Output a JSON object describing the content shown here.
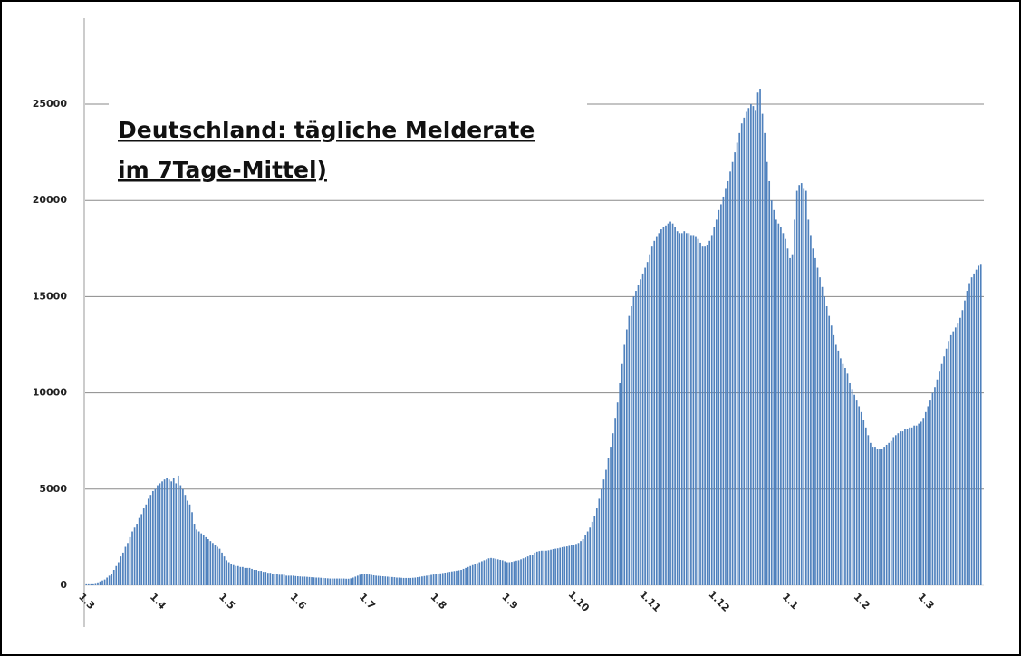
{
  "chart_data": {
    "type": "bar",
    "title": [
      "Deutschland: tägliche Melderate",
      "im 7Tage-Mittel)"
    ],
    "color": "#4f81bd",
    "grid": true,
    "ylim": [
      0,
      29500
    ],
    "yticks": [
      0,
      5000,
      10000,
      15000,
      20000,
      25000
    ],
    "categories": [
      "1.3",
      null,
      null,
      null,
      null,
      null,
      null,
      null,
      null,
      null,
      null,
      null,
      null,
      null,
      null,
      null,
      null,
      null,
      null,
      null,
      null,
      null,
      null,
      null,
      null,
      null,
      null,
      null,
      null,
      null,
      null,
      "1.4",
      null,
      null,
      null,
      null,
      null,
      null,
      null,
      null,
      null,
      null,
      null,
      null,
      null,
      null,
      null,
      null,
      null,
      null,
      null,
      null,
      null,
      null,
      null,
      null,
      null,
      null,
      null,
      null,
      null,
      "1.5",
      null,
      null,
      null,
      null,
      null,
      null,
      null,
      null,
      null,
      null,
      null,
      null,
      null,
      null,
      null,
      null,
      null,
      null,
      null,
      null,
      null,
      null,
      null,
      null,
      null,
      null,
      null,
      null,
      null,
      null,
      "1.6",
      null,
      null,
      null,
      null,
      null,
      null,
      null,
      null,
      null,
      null,
      null,
      null,
      null,
      null,
      null,
      null,
      null,
      null,
      null,
      null,
      null,
      null,
      null,
      null,
      null,
      null,
      null,
      null,
      null,
      "1.7",
      null,
      null,
      null,
      null,
      null,
      null,
      null,
      null,
      null,
      null,
      null,
      null,
      null,
      null,
      null,
      null,
      null,
      null,
      null,
      null,
      null,
      null,
      null,
      null,
      null,
      null,
      null,
      null,
      null,
      null,
      "1.8",
      null,
      null,
      null,
      null,
      null,
      null,
      null,
      null,
      null,
      null,
      null,
      null,
      null,
      null,
      null,
      null,
      null,
      null,
      null,
      null,
      null,
      null,
      null,
      null,
      null,
      null,
      null,
      null,
      null,
      null,
      "1.9",
      null,
      null,
      null,
      null,
      null,
      null,
      null,
      null,
      null,
      null,
      null,
      null,
      null,
      null,
      null,
      null,
      null,
      null,
      null,
      null,
      null,
      null,
      null,
      null,
      null,
      null,
      null,
      null,
      null,
      "1.10",
      null,
      null,
      null,
      null,
      null,
      null,
      null,
      null,
      null,
      null,
      null,
      null,
      null,
      null,
      null,
      null,
      null,
      null,
      null,
      null,
      null,
      null,
      null,
      null,
      null,
      null,
      null,
      null,
      null,
      null,
      "1.11",
      null,
      null,
      null,
      null,
      null,
      null,
      null,
      null,
      null,
      null,
      null,
      null,
      null,
      null,
      null,
      null,
      null,
      null,
      null,
      null,
      null,
      null,
      null,
      null,
      null,
      null,
      null,
      null,
      null,
      "1.12",
      null,
      null,
      null,
      null,
      null,
      null,
      null,
      null,
      null,
      null,
      null,
      null,
      null,
      null,
      null,
      null,
      null,
      null,
      null,
      null,
      null,
      null,
      null,
      null,
      null,
      null,
      null,
      null,
      null,
      null,
      "1.1",
      null,
      null,
      null,
      null,
      null,
      null,
      null,
      null,
      null,
      null,
      null,
      null,
      null,
      null,
      null,
      null,
      null,
      null,
      null,
      null,
      null,
      null,
      null,
      null,
      null,
      null,
      null,
      null,
      null,
      null,
      "1.2",
      null,
      null,
      null,
      null,
      null,
      null,
      null,
      null,
      null,
      null,
      null,
      null,
      null,
      null,
      null,
      null,
      null,
      null,
      null,
      null,
      null,
      null,
      null,
      null,
      null,
      null,
      null,
      "1.3",
      null,
      null,
      null,
      null,
      null,
      null,
      null,
      null,
      null,
      null,
      null,
      null,
      null,
      null,
      null,
      null,
      null,
      null,
      null,
      null,
      null,
      null,
      null,
      null
    ],
    "values": [
      100,
      100,
      100,
      100,
      120,
      150,
      200,
      250,
      300,
      400,
      500,
      600,
      800,
      1000,
      1200,
      1500,
      1700,
      2000,
      2200,
      2500,
      2800,
      3000,
      3200,
      3500,
      3700,
      4000,
      4200,
      4500,
      4700,
      4900,
      5000,
      5200,
      5300,
      5400,
      5500,
      5600,
      5500,
      5400,
      5600,
      5300,
      5700,
      5200,
      5000,
      4700,
      4400,
      4200,
      3800,
      3200,
      2900,
      2800,
      2700,
      2600,
      2500,
      2400,
      2300,
      2200,
      2100,
      2000,
      1900,
      1700,
      1500,
      1300,
      1200,
      1100,
      1050,
      1000,
      1000,
      950,
      950,
      900,
      900,
      900,
      850,
      800,
      800,
      750,
      750,
      700,
      700,
      650,
      650,
      600,
      600,
      600,
      550,
      550,
      550,
      500,
      500,
      500,
      500,
      480,
      470,
      460,
      450,
      450,
      440,
      430,
      420,
      410,
      400,
      400,
      390,
      380,
      370,
      360,
      350,
      350,
      350,
      350,
      350,
      350,
      350,
      340,
      340,
      360,
      400,
      450,
      500,
      550,
      580,
      600,
      580,
      560,
      540,
      520,
      500,
      490,
      480,
      470,
      460,
      450,
      440,
      430,
      420,
      400,
      400,
      390,
      380,
      380,
      380,
      380,
      390,
      400,
      420,
      440,
      460,
      480,
      500,
      520,
      540,
      560,
      580,
      600,
      620,
      640,
      660,
      680,
      700,
      720,
      740,
      760,
      780,
      800,
      850,
      900,
      950,
      1000,
      1050,
      1100,
      1150,
      1200,
      1250,
      1300,
      1350,
      1400,
      1420,
      1400,
      1380,
      1350,
      1320,
      1300,
      1250,
      1200,
      1200,
      1220,
      1250,
      1280,
      1300,
      1350,
      1400,
      1450,
      1500,
      1550,
      1600,
      1700,
      1750,
      1780,
      1800,
      1800,
      1800,
      1820,
      1850,
      1880,
      1900,
      1920,
      1950,
      1980,
      2000,
      2020,
      2050,
      2080,
      2100,
      2150,
      2200,
      2300,
      2400,
      2600,
      2800,
      3000,
      3300,
      3600,
      4000,
      4500,
      5000,
      5500,
      6000,
      6600,
      7200,
      7900,
      8700,
      9500,
      10500,
      11500,
      12500,
      13300,
      14000,
      14500,
      15000,
      15300,
      15600,
      15900,
      16200,
      16500,
      16800,
      17200,
      17600,
      17900,
      18100,
      18300,
      18500,
      18600,
      18700,
      18800,
      18900,
      18800,
      18600,
      18400,
      18300,
      18300,
      18400,
      18300,
      18300,
      18200,
      18200,
      18100,
      18000,
      17800,
      17600,
      17600,
      17700,
      17900,
      18200,
      18600,
      19000,
      19500,
      19800,
      20200,
      20600,
      21000,
      21500,
      22000,
      22500,
      23000,
      23500,
      24000,
      24300,
      24600,
      24800,
      25000,
      24900,
      24700,
      25600,
      25800,
      24500,
      23500,
      22000,
      21000,
      20000,
      19500,
      19000,
      18800,
      18600,
      18300,
      18000,
      17500,
      17000,
      17200,
      19000,
      20500,
      20800,
      20900,
      20600,
      20500,
      19000,
      18200,
      17500,
      17000,
      16500,
      16000,
      15500,
      15000,
      14500,
      14000,
      13500,
      13000,
      12500,
      12200,
      11800,
      11500,
      11300,
      11000,
      10500,
      10200,
      9900,
      9600,
      9300,
      9000,
      8600,
      8200,
      7800,
      7400,
      7200,
      7200,
      7100,
      7100,
      7100,
      7200,
      7300,
      7400,
      7500,
      7700,
      7800,
      7900,
      8000,
      8000,
      8100,
      8100,
      8200,
      8200,
      8300,
      8300,
      8400,
      8500,
      8700,
      9000,
      9300,
      9600,
      10000,
      10300,
      10700,
      11100,
      11500,
      11900,
      12300,
      12700,
      13000,
      13200,
      13400,
      13600,
      13900,
      14300,
      14800,
      15300,
      15700,
      16000,
      16200,
      16400,
      16600,
      16700
    ]
  }
}
